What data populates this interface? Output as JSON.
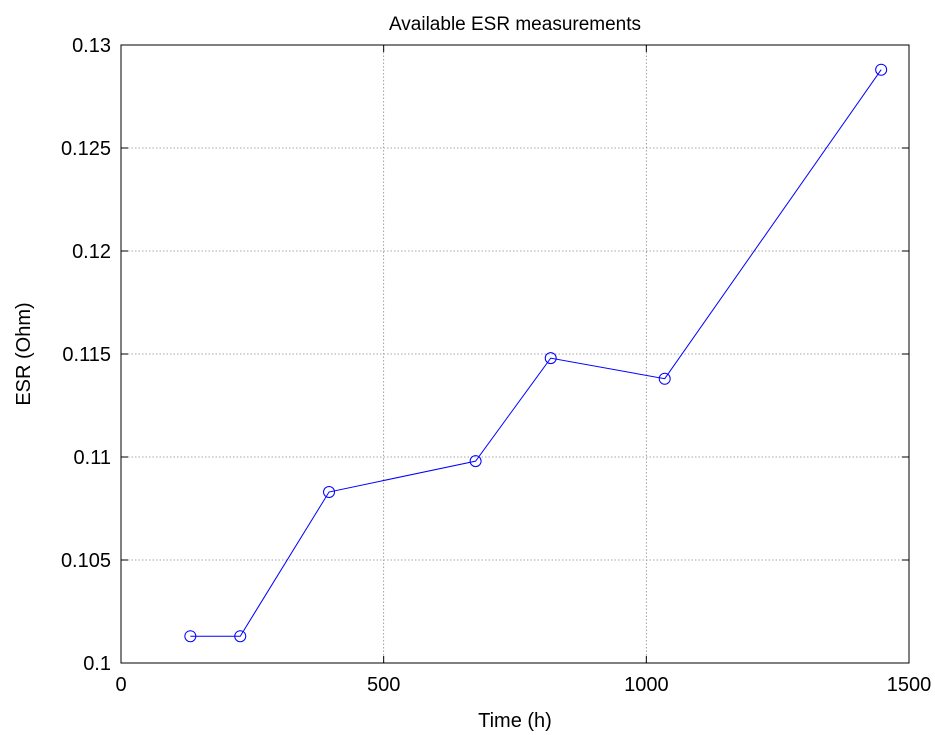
{
  "chart_data": {
    "type": "line",
    "title": "Available ESR measurements",
    "xlabel": "Time (h)",
    "ylabel": "ESR (Ohm)",
    "xlim": [
      0,
      1500
    ],
    "ylim": [
      0.1,
      0.13
    ],
    "xticks": [
      0,
      500,
      1000,
      1500
    ],
    "xtick_labels": [
      "0",
      "500",
      "1000",
      "1500"
    ],
    "yticks": [
      0.1,
      0.105,
      0.11,
      0.115,
      0.12,
      0.125,
      0.13
    ],
    "ytick_labels": [
      "0.1",
      "0.105",
      "0.11",
      "0.115",
      "0.12",
      "0.125",
      "0.13"
    ],
    "grid": true,
    "series": [
      {
        "color": "#0000ff",
        "marker": "circle",
        "x": [
          132,
          227,
          396,
          675,
          818,
          1035,
          1447
        ],
        "y": [
          0.1013,
          0.1013,
          0.1083,
          0.1098,
          0.1148,
          0.1138,
          0.1288
        ]
      }
    ]
  }
}
